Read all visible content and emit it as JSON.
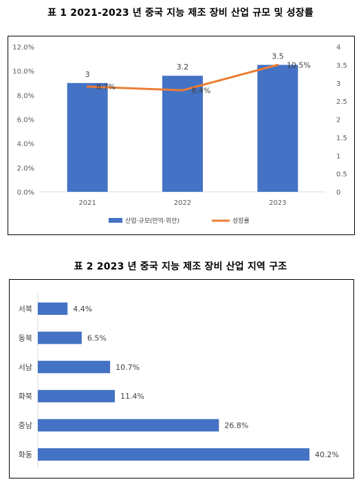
{
  "chart1": {
    "title": "표 1   2021-2023 년 중국 지능 제조 장비 산업 규모 및 성장률",
    "chart_data": {
      "type": "bar",
      "categories": [
        "2021",
        "2022",
        "2023"
      ],
      "series": [
        {
          "name": "산업·규모(만억·위안)",
          "type": "bar",
          "axis": "right",
          "values": [
            3,
            3.2,
            3.5
          ],
          "labels": [
            "3",
            "3.2",
            "3.5"
          ],
          "color": "#4472C4"
        },
        {
          "name": "성장률",
          "type": "line",
          "axis": "left",
          "values": [
            8.7,
            8.4,
            10.5
          ],
          "labels": [
            "8.7%",
            "8.4%",
            "10.5%"
          ],
          "color": "#ED7D31"
        }
      ],
      "y_left": {
        "min": 0,
        "max": 12,
        "ticks": [
          "0.0%",
          "2.0%",
          "4.0%",
          "6.0%",
          "8.0%",
          "10.0%",
          "12.0%"
        ]
      },
      "y_right": {
        "min": 0,
        "max": 4,
        "ticks": [
          "0",
          "0.5",
          "1",
          "1.5",
          "2",
          "2.5",
          "3",
          "3.5",
          "4"
        ]
      },
      "grid": false,
      "legend": "bottom"
    }
  },
  "chart2": {
    "title": "표 2   2023 년 중국 지능 제조 장비 산업 지역 구조",
    "chart_data": {
      "type": "bar",
      "orientation": "horizontal",
      "categories": [
        "서북",
        "동북",
        "서남",
        "화북",
        "중남",
        "화동"
      ],
      "values": [
        4.4,
        6.5,
        10.7,
        11.4,
        26.8,
        40.2
      ],
      "labels": [
        "4.4%",
        "6.5%",
        "10.7%",
        "11.4%",
        "26.8%",
        "40.2%"
      ],
      "color": "#4472C4",
      "grid": false
    }
  }
}
